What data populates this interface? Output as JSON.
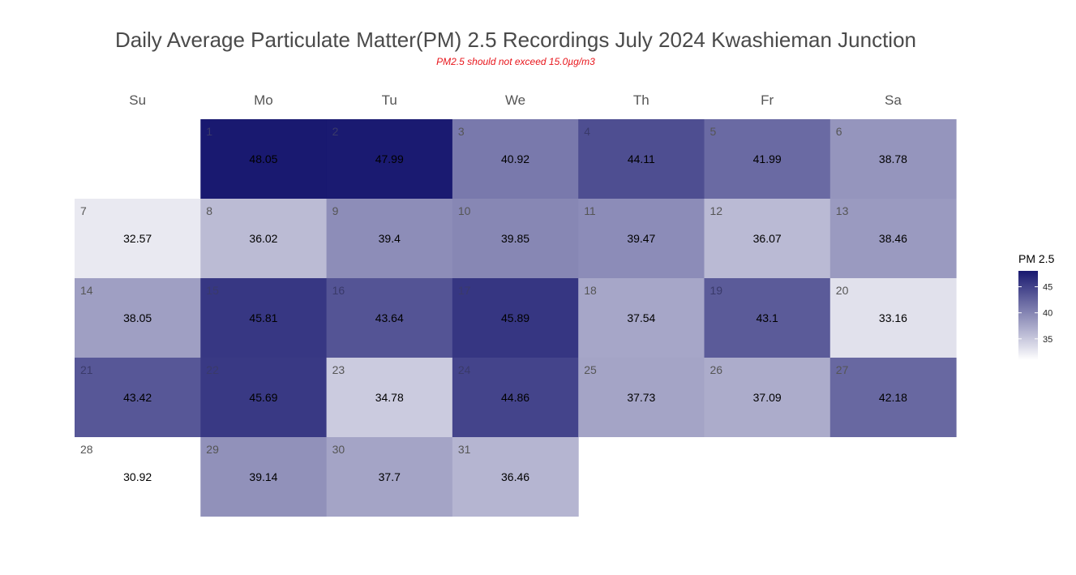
{
  "chart_data": {
    "type": "heatmap",
    "title": "Daily Average Particulate Matter(PM) 2.5 Recordings July 2024 Kwashieman Junction",
    "subtitle": "PM2.5 should not exceed 15.0µg/m3",
    "weekdays": [
      "Su",
      "Mo",
      "Tu",
      "We",
      "Th",
      "Fr",
      "Sa"
    ],
    "first_weekday_index": 1,
    "days": [
      1,
      2,
      3,
      4,
      5,
      6,
      7,
      8,
      9,
      10,
      11,
      12,
      13,
      14,
      15,
      16,
      17,
      18,
      19,
      20,
      21,
      22,
      23,
      24,
      25,
      26,
      27,
      28,
      29,
      30,
      31
    ],
    "values": [
      48.05,
      47.99,
      40.92,
      44.11,
      41.99,
      38.78,
      32.57,
      36.02,
      39.4,
      39.85,
      39.47,
      36.07,
      38.46,
      38.05,
      45.81,
      43.64,
      45.89,
      37.54,
      43.1,
      33.16,
      43.42,
      45.69,
      34.78,
      44.86,
      37.73,
      37.09,
      42.18,
      30.92,
      39.14,
      37.7,
      36.46
    ],
    "color_range": [
      30.92,
      48.05
    ],
    "color_low": "#ffffff",
    "color_high": "#191970",
    "legend": {
      "title": "PM 2.5",
      "ticks": [
        35,
        40,
        45
      ],
      "position": "right"
    }
  }
}
